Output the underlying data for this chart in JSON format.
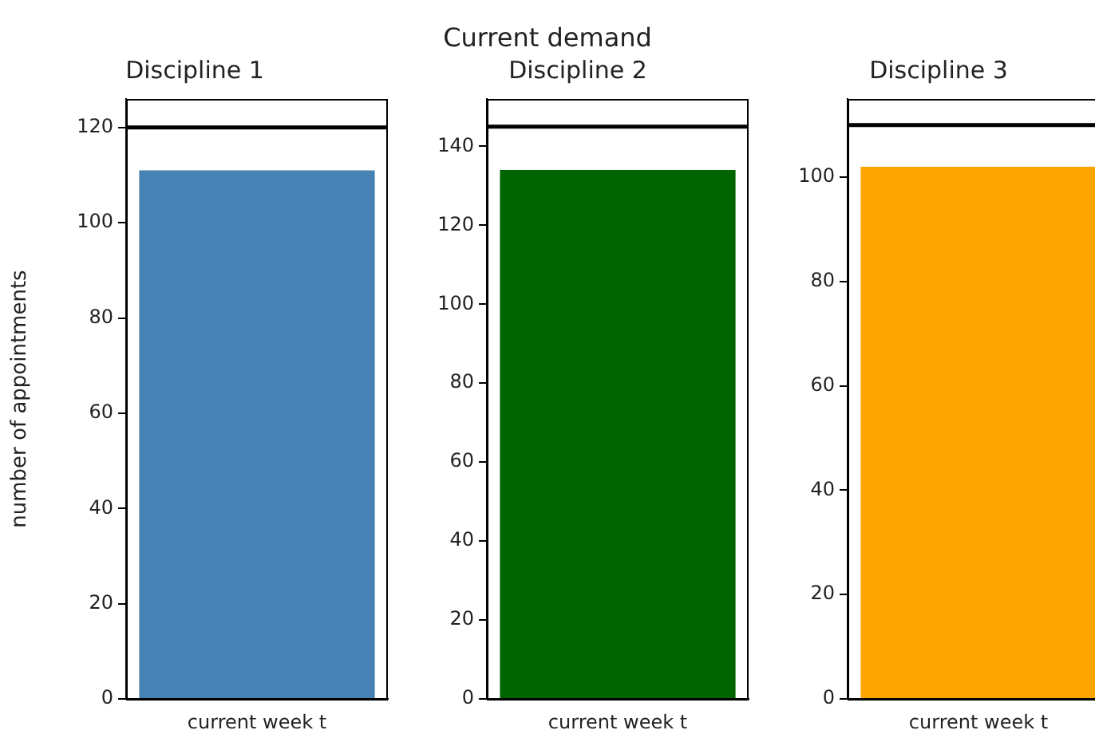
{
  "chart_data": [
    {
      "type": "bar",
      "title": "Discipline 1",
      "ylabel": "number of appointments",
      "categories": [
        "current week t"
      ],
      "values": [
        111
      ],
      "color": "#4682b4",
      "ylim": [
        0,
        126
      ],
      "yticks": [
        0,
        20,
        40,
        60,
        80,
        100,
        120
      ],
      "ref_lines": [
        {
          "axis": "y",
          "value": 120,
          "color": "#000000"
        }
      ],
      "annotations": [
        "Current demand"
      ]
    },
    {
      "type": "bar",
      "title": "Discipline 2",
      "categories": [
        "current week t"
      ],
      "values": [
        134
      ],
      "color": "#006400",
      "ylim": [
        0,
        152
      ],
      "yticks": [
        0,
        20,
        40,
        60,
        80,
        100,
        120,
        140
      ],
      "ref_lines": [
        {
          "axis": "y",
          "value": 145,
          "color": "#000000"
        }
      ]
    },
    {
      "type": "bar",
      "title": "Discipline 3",
      "categories": [
        "current week t"
      ],
      "values": [
        102
      ],
      "color": "#ffa500",
      "ylim": [
        0,
        115
      ],
      "yticks": [
        0,
        20,
        40,
        60,
        80,
        100
      ],
      "ref_lines": [
        {
          "axis": "y",
          "value": 110,
          "color": "#000000"
        }
      ]
    }
  ]
}
